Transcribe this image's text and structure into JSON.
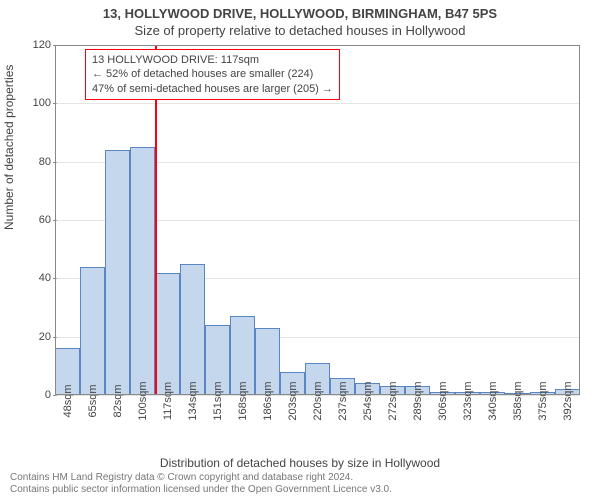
{
  "header": {
    "title": "13, HOLLYWOOD DRIVE, HOLLYWOOD, BIRMINGHAM, B47 5PS",
    "subtitle": "Size of property relative to detached houses in Hollywood"
  },
  "ylabel": "Number of detached properties",
  "xlabel": "Distribution of detached houses by size in Hollywood",
  "chart": {
    "type": "histogram",
    "ylim": [
      0,
      120
    ],
    "ytick_step": 20,
    "yticks": [
      0,
      20,
      40,
      60,
      80,
      100,
      120
    ],
    "categories": [
      "48sqm",
      "65sqm",
      "82sqm",
      "100sqm",
      "117sqm",
      "134sqm",
      "151sqm",
      "168sqm",
      "186sqm",
      "203sqm",
      "220sqm",
      "237sqm",
      "254sqm",
      "272sqm",
      "289sqm",
      "306sqm",
      "323sqm",
      "340sqm",
      "358sqm",
      "375sqm",
      "392sqm"
    ],
    "values": [
      16,
      44,
      84,
      85,
      42,
      45,
      24,
      27,
      23,
      8,
      11,
      6,
      4,
      3,
      3,
      1,
      1,
      1,
      0,
      1,
      2
    ],
    "bar_fill": "#c5d7ed",
    "bar_border": "#5b86c4",
    "grid_color": "#cccccc",
    "axis_color": "#888888",
    "background_color": "#ffffff",
    "marker": {
      "color": "#fc000d",
      "category_index": 4
    }
  },
  "callout": {
    "line1": "13 HOLLYWOOD DRIVE: 117sqm",
    "line2": "← 52% of detached houses are smaller (224)",
    "line3": "47% of semi-detached houses are larger (205) →"
  },
  "copyright": {
    "line1": "Contains HM Land Registry data © Crown copyright and database right 2024.",
    "line2": "Contains public sector information licensed under the Open Government Licence v3.0."
  },
  "style": {
    "title_fontsize": 13,
    "label_fontsize": 12,
    "tick_fontsize": 11,
    "callout_fontsize": 11,
    "copyright_fontsize": 10,
    "text_color": "#444444"
  }
}
